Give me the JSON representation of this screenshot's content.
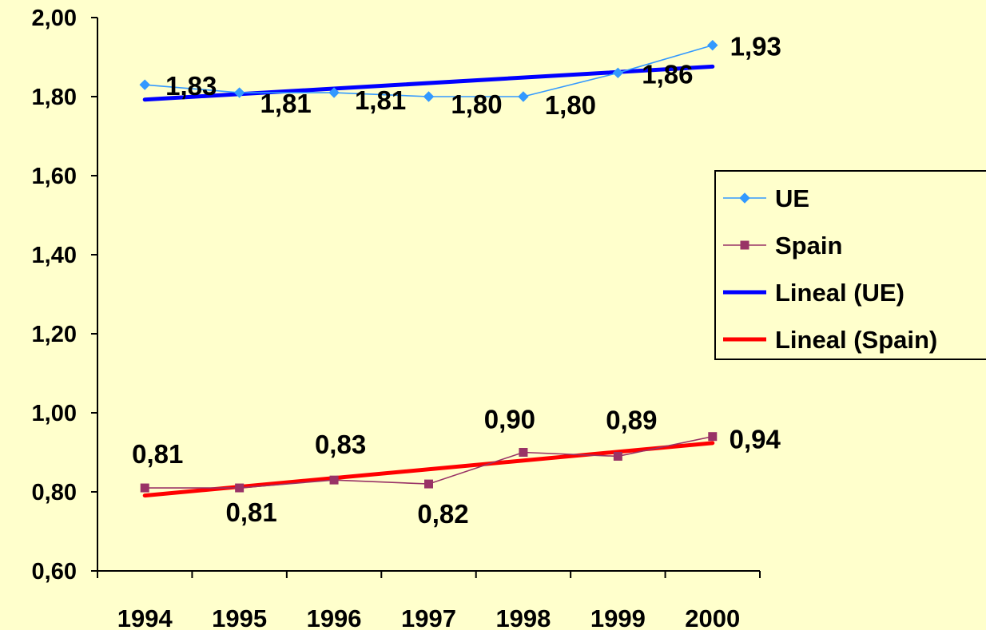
{
  "chart_data": {
    "type": "line",
    "categories": [
      "1994",
      "1995",
      "1996",
      "1997",
      "1998",
      "1999",
      "2000"
    ],
    "series": [
      {
        "name": "UE",
        "values": [
          1.83,
          1.81,
          1.81,
          1.8,
          1.8,
          1.86,
          1.93
        ],
        "labels": [
          "1,83",
          "1,81",
          "1,81",
          "1,80",
          "1,80",
          "1,86",
          "1,93"
        ],
        "color": "#3399FF",
        "marker": "diamond"
      },
      {
        "name": "Spain",
        "values": [
          0.81,
          0.81,
          0.83,
          0.82,
          0.9,
          0.89,
          0.94
        ],
        "labels": [
          "0,81",
          "0,81",
          "0,83",
          "0,82",
          "0,90",
          "0,89",
          "0,94"
        ],
        "color": "#993366",
        "marker": "square"
      }
    ],
    "trendlines": [
      {
        "name": "Lineal (UE)",
        "of": "UE",
        "color": "#0000FF"
      },
      {
        "name": "Lineal (Spain)",
        "of": "Spain",
        "color": "#FF0000"
      }
    ],
    "ylim": [
      0.6,
      2.0
    ],
    "yticks": [
      0.6,
      0.8,
      1.0,
      1.2,
      1.4,
      1.6,
      1.8,
      2.0
    ],
    "ytick_labels": [
      "0,60",
      "0,80",
      "1,00",
      "1,20",
      "1,40",
      "1,60",
      "1,80",
      "2,00"
    ],
    "legend": {
      "position": "right",
      "items": [
        "UE",
        "Spain",
        "Lineal (UE)",
        "Lineal (Spain)"
      ]
    },
    "grid": false,
    "background": "#FFFFCC"
  }
}
